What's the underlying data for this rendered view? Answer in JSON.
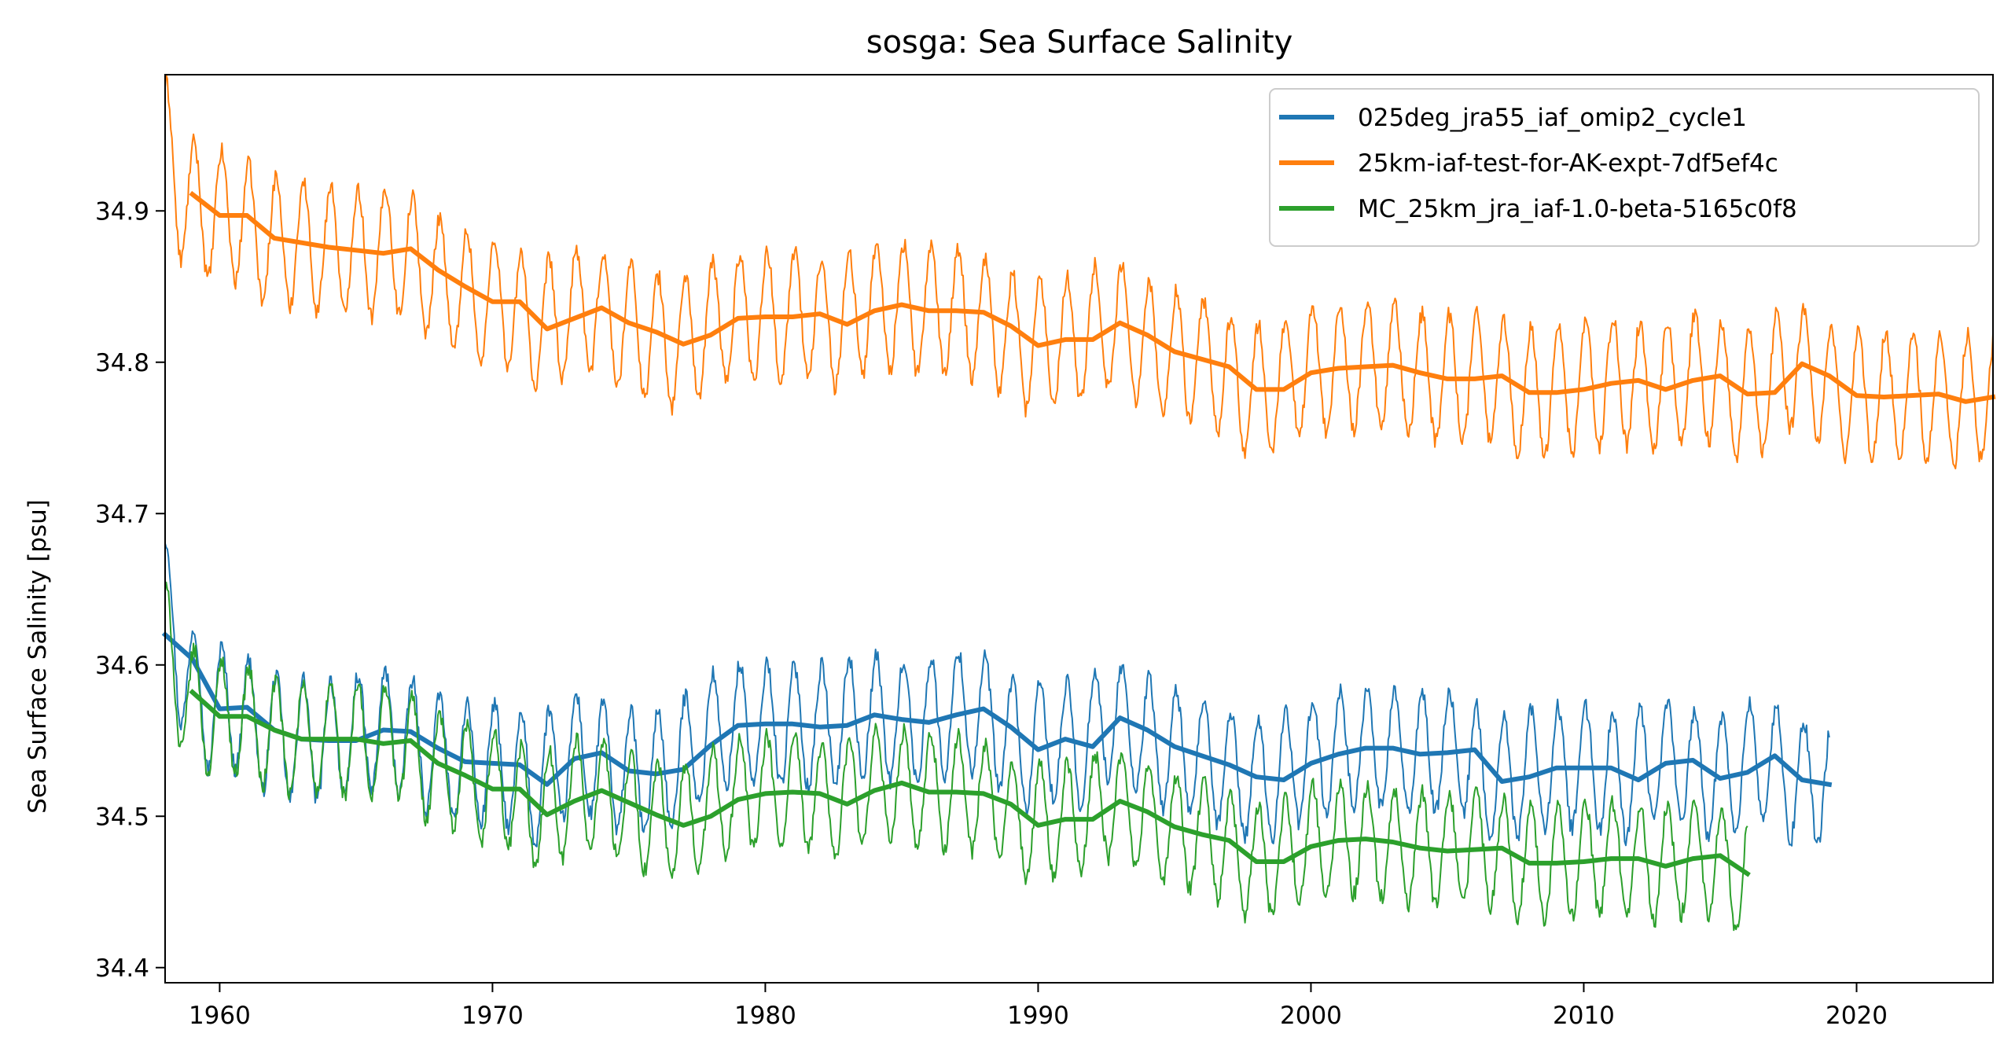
{
  "chart_data": {
    "type": "line",
    "title": "sosga: Sea Surface Salinity",
    "xlabel": "",
    "ylabel": "Sea Surface Salinity [psu]",
    "xlim": [
      1958,
      2025
    ],
    "ylim": [
      34.39,
      34.99
    ],
    "xticks": [
      1960,
      1970,
      1980,
      1990,
      2000,
      2010,
      2020
    ],
    "yticks": [
      34.4,
      34.5,
      34.6,
      34.7,
      34.8,
      34.9
    ],
    "ytick_labels": [
      "34.4",
      "34.5",
      "34.6",
      "34.7",
      "34.8",
      "34.9"
    ],
    "grid": false,
    "legend_position": "top-right",
    "series": [
      {
        "name": "025deg_jra55_iaf_omip2_cycle1",
        "color": "#1f77b4",
        "start_year": 1958,
        "seasonal_amplitude": 0.04,
        "annual_x": [
          1958,
          1959,
          1960,
          1961,
          1962,
          1963,
          1964,
          1965,
          1966,
          1967,
          1968,
          1969,
          1970,
          1971,
          1972,
          1973,
          1974,
          1975,
          1976,
          1977,
          1978,
          1979,
          1980,
          1981,
          1982,
          1983,
          1984,
          1985,
          1986,
          1987,
          1988,
          1989,
          1990,
          1991,
          1992,
          1993,
          1994,
          1995,
          1996,
          1997,
          1998,
          1999,
          2000,
          2001,
          2002,
          2003,
          2004,
          2005,
          2006,
          2007,
          2008,
          2009,
          2010,
          2011,
          2012,
          2013,
          2014,
          2015,
          2016,
          2017,
          2018,
          2019
        ],
        "annual_mean": [
          34.62,
          34.604,
          34.571,
          34.572,
          34.557,
          34.551,
          34.55,
          34.55,
          34.557,
          34.556,
          34.545,
          34.536,
          34.535,
          34.534,
          34.521,
          34.538,
          34.542,
          34.53,
          34.528,
          34.531,
          34.547,
          34.56,
          34.561,
          34.561,
          34.559,
          34.56,
          34.567,
          34.564,
          34.562,
          34.567,
          34.571,
          34.559,
          34.544,
          34.551,
          34.546,
          34.565,
          34.557,
          34.546,
          34.54,
          34.534,
          34.526,
          34.524,
          34.535,
          34.541,
          34.545,
          34.545,
          34.541,
          34.542,
          34.544,
          34.523,
          34.526,
          34.532,
          34.532,
          34.532,
          34.524,
          34.535,
          34.537,
          34.525,
          34.529,
          34.54,
          34.524,
          34.521
        ]
      },
      {
        "name": "25km-iaf-test-for-AK-expt-7df5ef4c",
        "color": "#ff7f0e",
        "start_year": 1958,
        "seasonal_amplitude": 0.042,
        "annual_x": [
          1959,
          1960,
          1961,
          1962,
          1963,
          1964,
          1965,
          1966,
          1967,
          1968,
          1969,
          1970,
          1971,
          1972,
          1973,
          1974,
          1975,
          1976,
          1977,
          1978,
          1979,
          1980,
          1981,
          1982,
          1983,
          1984,
          1985,
          1986,
          1987,
          1988,
          1989,
          1990,
          1991,
          1992,
          1993,
          1994,
          1995,
          1996,
          1997,
          1998,
          1999,
          2000,
          2001,
          2002,
          2003,
          2004,
          2005,
          2006,
          2007,
          2008,
          2009,
          2010,
          2011,
          2012,
          2013,
          2014,
          2015,
          2016,
          2017,
          2018,
          2019,
          2020,
          2021,
          2022,
          2023,
          2024,
          2025
        ],
        "annual_mean": [
          34.911,
          34.897,
          34.897,
          34.882,
          34.879,
          34.876,
          34.874,
          34.872,
          34.875,
          34.861,
          34.85,
          34.84,
          34.84,
          34.822,
          34.829,
          34.836,
          34.826,
          34.82,
          34.812,
          34.818,
          34.829,
          34.83,
          34.83,
          34.832,
          34.825,
          34.834,
          34.838,
          34.834,
          34.834,
          34.833,
          34.824,
          34.811,
          34.815,
          34.815,
          34.826,
          34.818,
          34.807,
          34.802,
          34.797,
          34.782,
          34.782,
          34.793,
          34.796,
          34.797,
          34.798,
          34.793,
          34.789,
          34.789,
          34.791,
          34.78,
          34.78,
          34.782,
          34.786,
          34.788,
          34.782,
          34.788,
          34.791,
          34.779,
          34.78,
          34.799,
          34.791,
          34.778,
          34.777,
          34.778,
          34.779,
          34.774,
          34.777
        ]
      },
      {
        "name": "MC_25km_jra_iaf-1.0-beta-5165c0f8",
        "color": "#2ca02c",
        "start_year": 1958,
        "seasonal_amplitude": 0.037,
        "annual_x": [
          1959,
          1960,
          1961,
          1962,
          1963,
          1964,
          1965,
          1966,
          1967,
          1968,
          1969,
          1970,
          1971,
          1972,
          1973,
          1974,
          1975,
          1976,
          1977,
          1978,
          1979,
          1980,
          1981,
          1982,
          1983,
          1984,
          1985,
          1986,
          1987,
          1988,
          1989,
          1990,
          1991,
          1992,
          1993,
          1994,
          1995,
          1996,
          1997,
          1998,
          1999,
          2000,
          2001,
          2002,
          2003,
          2004,
          2005,
          2006,
          2007,
          2008,
          2009,
          2010,
          2011,
          2012,
          2013,
          2014,
          2015,
          2016
        ],
        "annual_mean": [
          34.582,
          34.566,
          34.566,
          34.557,
          34.551,
          34.551,
          34.551,
          34.548,
          34.55,
          34.535,
          34.527,
          34.518,
          34.518,
          34.501,
          34.51,
          34.517,
          34.509,
          34.501,
          34.494,
          34.5,
          34.511,
          34.515,
          34.516,
          34.515,
          34.508,
          34.517,
          34.522,
          34.516,
          34.516,
          34.515,
          34.508,
          34.494,
          34.498,
          34.498,
          34.51,
          34.503,
          34.493,
          34.488,
          34.484,
          34.47,
          34.47,
          34.48,
          34.484,
          34.485,
          34.483,
          34.479,
          34.477,
          34.478,
          34.479,
          34.469,
          34.469,
          34.47,
          34.472,
          34.472,
          34.467,
          34.472,
          34.474,
          34.462
        ]
      }
    ]
  }
}
